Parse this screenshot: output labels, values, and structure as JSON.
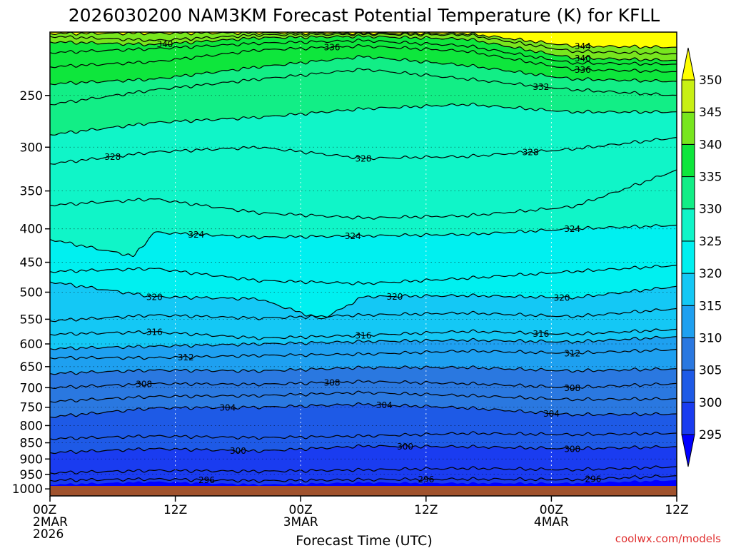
{
  "chart_data": {
    "type": "heatmap",
    "title": "2026030200 NAM3KM Forecast Potential Temperature (K) for KFLL",
    "xlabel": "Forecast Time (UTC)",
    "ylabel": "",
    "credit": "coolwx.com/models",
    "x_range_hours": [
      0,
      60
    ],
    "x_ticks": [
      {
        "hour": 0,
        "lines": [
          "00Z",
          "2MAR",
          "2026"
        ]
      },
      {
        "hour": 12,
        "lines": [
          "12Z"
        ]
      },
      {
        "hour": 24,
        "lines": [
          "00Z",
          "3MAR"
        ]
      },
      {
        "hour": 36,
        "lines": [
          "12Z"
        ]
      },
      {
        "hour": 48,
        "lines": [
          "00Z",
          "4MAR"
        ]
      },
      {
        "hour": 60,
        "lines": [
          "12Z"
        ]
      }
    ],
    "y_scale": "log",
    "y_range_hpa": [
      1025,
      200
    ],
    "y_ticks": [
      1000,
      950,
      900,
      850,
      800,
      750,
      700,
      650,
      600,
      550,
      500,
      450,
      400,
      350,
      300,
      250
    ],
    "colorbar": {
      "levels": [
        295,
        300,
        305,
        310,
        315,
        320,
        325,
        330,
        335,
        340,
        345,
        350
      ],
      "colors": [
        "#0000ff",
        "#1a3cf0",
        "#1e5ae6",
        "#2a78e0",
        "#1ea0f0",
        "#14c8f5",
        "#00f0f0",
        "#10f5c8",
        "#12ee86",
        "#0ee63c",
        "#78e61e",
        "#c8f014",
        "#ffff00"
      ],
      "extend": "both"
    },
    "grid": true,
    "ground_color": "#a0522d",
    "contour_interval": 2,
    "contours": [
      {
        "level": 296,
        "points": [
          [
            0,
            970
          ],
          [
            10,
            966
          ],
          [
            20,
            972
          ],
          [
            30,
            968
          ],
          [
            40,
            966
          ],
          [
            50,
            968
          ],
          [
            60,
            955
          ]
        ],
        "label_hours": [
          15,
          36,
          52
        ]
      },
      {
        "level": 298,
        "points": [
          [
            0,
            945
          ],
          [
            10,
            937
          ],
          [
            20,
            940
          ],
          [
            30,
            935
          ],
          [
            40,
            930
          ],
          [
            50,
            935
          ],
          [
            60,
            925
          ]
        ],
        "label_hours": []
      },
      {
        "level": 300,
        "points": [
          [
            0,
            880
          ],
          [
            10,
            868
          ],
          [
            20,
            875
          ],
          [
            30,
            860
          ],
          [
            40,
            862
          ],
          [
            50,
            868
          ],
          [
            60,
            862
          ]
        ],
        "label_hours": [
          18,
          34,
          50
        ]
      },
      {
        "level": 302,
        "points": [
          [
            0,
            838
          ],
          [
            10,
            830
          ],
          [
            20,
            835
          ],
          [
            30,
            830
          ],
          [
            40,
            822
          ],
          [
            50,
            826
          ],
          [
            60,
            822
          ]
        ],
        "label_hours": []
      },
      {
        "level": 304,
        "points": [
          [
            0,
            776
          ],
          [
            10,
            752
          ],
          [
            20,
            750
          ],
          [
            30,
            742
          ],
          [
            40,
            752
          ],
          [
            50,
            770
          ],
          [
            60,
            768
          ]
        ],
        "label_hours": [
          17,
          32,
          48
        ]
      },
      {
        "level": 306,
        "points": [
          [
            0,
            735
          ],
          [
            10,
            722
          ],
          [
            20,
            720
          ],
          [
            30,
            712
          ],
          [
            40,
            720
          ],
          [
            50,
            730
          ],
          [
            60,
            728
          ]
        ],
        "label_hours": []
      },
      {
        "level": 308,
        "points": [
          [
            0,
            700
          ],
          [
            10,
            690
          ],
          [
            20,
            692
          ],
          [
            30,
            685
          ],
          [
            40,
            690
          ],
          [
            50,
            700
          ],
          [
            60,
            690
          ]
        ],
        "label_hours": [
          9,
          27,
          50
        ]
      },
      {
        "level": 310,
        "points": [
          [
            0,
            666
          ],
          [
            10,
            658
          ],
          [
            20,
            660
          ],
          [
            30,
            652
          ],
          [
            40,
            652
          ],
          [
            50,
            660
          ],
          [
            60,
            655
          ]
        ],
        "label_hours": []
      },
      {
        "level": 312,
        "points": [
          [
            0,
            630
          ],
          [
            10,
            630
          ],
          [
            20,
            625
          ],
          [
            30,
            622
          ],
          [
            40,
            615
          ],
          [
            50,
            620
          ],
          [
            60,
            612
          ]
        ],
        "label_hours": [
          13,
          50
        ]
      },
      {
        "level": 314,
        "points": [
          [
            0,
            610
          ],
          [
            10,
            605
          ],
          [
            20,
            600
          ],
          [
            30,
            595
          ],
          [
            40,
            592
          ],
          [
            50,
            596
          ],
          [
            60,
            585
          ]
        ],
        "label_hours": []
      },
      {
        "level": 316,
        "points": [
          [
            0,
            580
          ],
          [
            10,
            575
          ],
          [
            20,
            588
          ],
          [
            30,
            582
          ],
          [
            40,
            574
          ],
          [
            50,
            580
          ],
          [
            60,
            570
          ]
        ],
        "label_hours": [
          10,
          30,
          47
        ]
      },
      {
        "level": 318,
        "points": [
          [
            0,
            553
          ],
          [
            10,
            542
          ],
          [
            20,
            548
          ],
          [
            30,
            542
          ],
          [
            40,
            538
          ],
          [
            50,
            545
          ],
          [
            60,
            530
          ]
        ],
        "label_hours": []
      },
      {
        "level": 320,
        "points": [
          [
            0,
            482
          ],
          [
            10,
            508
          ],
          [
            20,
            512
          ],
          [
            26,
            550
          ],
          [
            30,
            508
          ],
          [
            40,
            506
          ],
          [
            50,
            510
          ],
          [
            60,
            490
          ]
        ],
        "label_hours": [
          10,
          33,
          49
        ]
      },
      {
        "level": 322,
        "points": [
          [
            0,
            465
          ],
          [
            10,
            460
          ],
          [
            20,
            480
          ],
          [
            30,
            485
          ],
          [
            40,
            476
          ],
          [
            50,
            465
          ],
          [
            60,
            455
          ]
        ],
        "label_hours": []
      },
      {
        "level": 324,
        "points": [
          [
            0,
            415
          ],
          [
            8,
            440
          ],
          [
            10,
            405
          ],
          [
            20,
            412
          ],
          [
            30,
            410
          ],
          [
            40,
            408
          ],
          [
            50,
            400
          ],
          [
            60,
            395
          ]
        ],
        "label_hours": [
          14,
          29,
          50
        ]
      },
      {
        "level": 326,
        "points": [
          [
            0,
            368
          ],
          [
            10,
            360
          ],
          [
            20,
            378
          ],
          [
            30,
            385
          ],
          [
            40,
            382
          ],
          [
            50,
            370
          ],
          [
            60,
            325
          ]
        ],
        "label_hours": []
      },
      {
        "level": 328,
        "points": [
          [
            0,
            318
          ],
          [
            10,
            305
          ],
          [
            20,
            300
          ],
          [
            30,
            312
          ],
          [
            40,
            310
          ],
          [
            50,
            302
          ],
          [
            60,
            290
          ]
        ],
        "label_hours": [
          6,
          30,
          46
        ]
      },
      {
        "level": 330,
        "points": [
          [
            0,
            287
          ],
          [
            10,
            275
          ],
          [
            20,
            270
          ],
          [
            30,
            262
          ],
          [
            40,
            258
          ],
          [
            50,
            265
          ],
          [
            60,
            265
          ]
        ],
        "label_hours": []
      },
      {
        "level": 332,
        "points": [
          [
            0,
            258
          ],
          [
            10,
            245
          ],
          [
            20,
            236
          ],
          [
            30,
            228
          ],
          [
            40,
            236
          ],
          [
            50,
            245
          ],
          [
            60,
            250
          ]
        ],
        "label_hours": [
          47
        ]
      },
      {
        "level": 334,
        "points": [
          [
            0,
            240
          ],
          [
            10,
            236
          ],
          [
            20,
            226
          ],
          [
            30,
            218
          ],
          [
            40,
            225
          ],
          [
            50,
            236
          ],
          [
            60,
            238
          ]
        ],
        "label_hours": []
      },
      {
        "level": 336,
        "points": [
          [
            0,
            226
          ],
          [
            10,
            222
          ],
          [
            20,
            213
          ],
          [
            30,
            210
          ],
          [
            40,
            214
          ],
          [
            50,
            228
          ],
          [
            60,
            230
          ]
        ],
        "label_hours": [
          27,
          51
        ]
      },
      {
        "level": 338,
        "points": [
          [
            0,
            215
          ],
          [
            10,
            212
          ],
          [
            20,
            208
          ],
          [
            30,
            206
          ],
          [
            40,
            210
          ],
          [
            50,
            223
          ],
          [
            60,
            224
          ]
        ],
        "label_hours": []
      },
      {
        "level": 340,
        "points": [
          [
            0,
            207
          ],
          [
            10,
            209
          ],
          [
            20,
            204
          ],
          [
            30,
            203
          ],
          [
            40,
            205
          ],
          [
            50,
            219
          ],
          [
            60,
            221
          ]
        ],
        "label_hours": [
          11,
          51
        ]
      },
      {
        "level": 342,
        "points": [
          [
            0,
            203
          ],
          [
            10,
            206
          ],
          [
            20,
            202
          ],
          [
            30,
            201.5
          ],
          [
            40,
            202
          ],
          [
            50,
            214
          ],
          [
            60,
            216
          ]
        ],
        "label_hours": []
      },
      {
        "level": 344,
        "points": [
          [
            0,
            201
          ],
          [
            20,
            200.5
          ],
          [
            40,
            201
          ],
          [
            50,
            210
          ],
          [
            60,
            211
          ]
        ],
        "label_hours": [
          51
        ]
      }
    ]
  }
}
